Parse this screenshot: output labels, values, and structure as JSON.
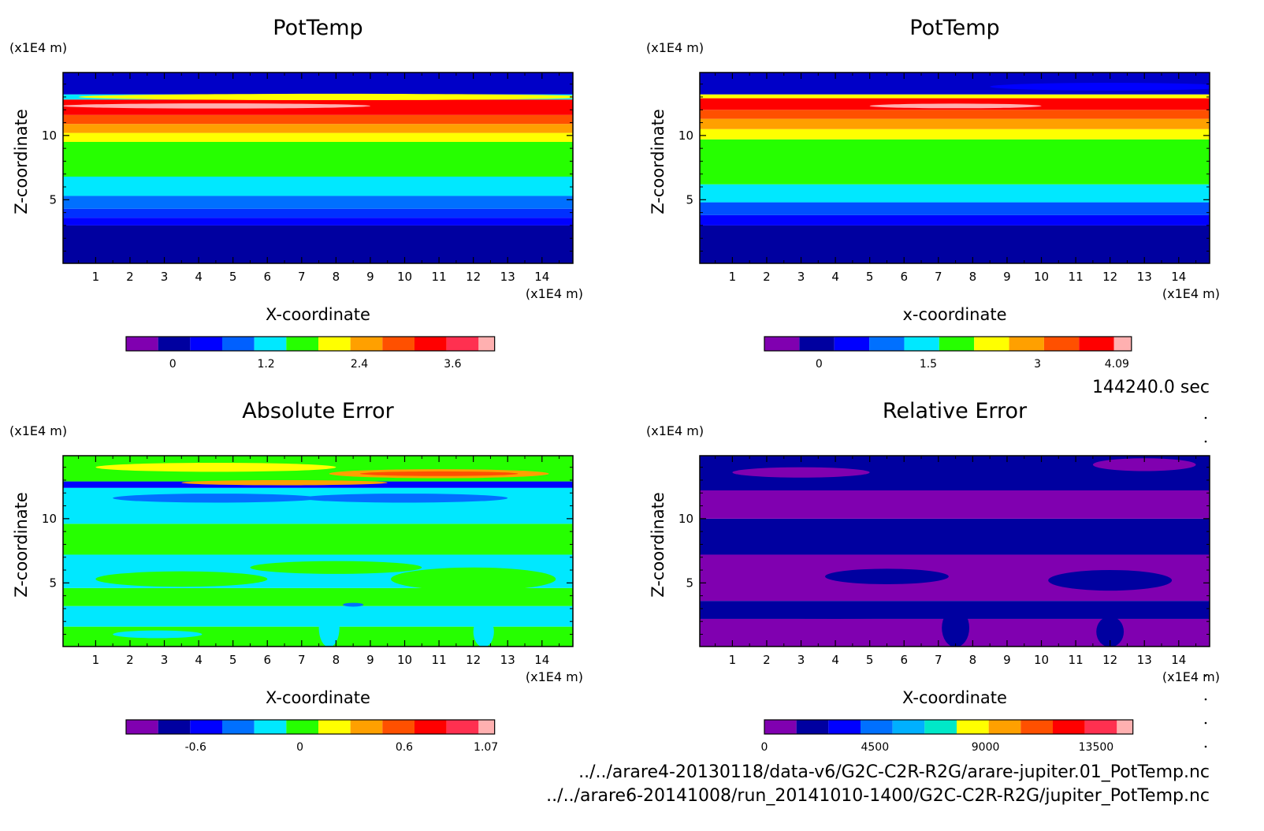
{
  "chart_data": [
    {
      "type": "heatmap",
      "title": "PotTemp",
      "xlabel": "X-coordinate",
      "ylabel": "Z-coordinate",
      "x_unit": "(x1E4 m)",
      "y_unit": "(x1E4 m)",
      "xlim": [
        0.05,
        14.9
      ],
      "ylim": [
        0.05,
        14.9
      ],
      "xticks": [
        "1",
        "2",
        "3",
        "4",
        "5",
        "6",
        "7",
        "8",
        "9",
        "10",
        "11",
        "12",
        "13",
        "14"
      ],
      "yticks": [
        "5",
        "10"
      ],
      "colorbar": {
        "colors": [
          "#8000b0",
          "#0000a0",
          "#0000ff",
          "#0060ff",
          "#00e8ff",
          "#26ff00",
          "#ffff00",
          "#ffa000",
          "#ff5000",
          "#ff0000",
          "#ff3050",
          "#ffb0b0"
        ],
        "ticks": [
          "0",
          "1.2",
          "2.4",
          "3.6"
        ],
        "tick_values": [
          0,
          1.2,
          2.4,
          3.6
        ],
        "range": [
          -0.6,
          4.14
        ]
      },
      "bands": [
        {
          "z": [
            0.05,
            3.0
          ],
          "color": "#0000a0"
        },
        {
          "z": [
            3.0,
            3.6
          ],
          "color": "#0000ff"
        },
        {
          "z": [
            3.6,
            4.3
          ],
          "color": "#0030ff"
        },
        {
          "z": [
            4.3,
            5.3
          ],
          "color": "#0070ff"
        },
        {
          "z": [
            5.3,
            6.8
          ],
          "color": "#00e8ff"
        },
        {
          "z": [
            6.8,
            9.5
          ],
          "color": "#26ff00"
        },
        {
          "z": [
            9.5,
            10.2
          ],
          "color": "#ffff00"
        },
        {
          "z": [
            10.2,
            10.9
          ],
          "color": "#ffa000"
        },
        {
          "z": [
            10.9,
            11.6
          ],
          "color": "#ff5000"
        },
        {
          "z": [
            11.6,
            12.8
          ],
          "color": "#ff0000"
        },
        {
          "z": [
            12.8,
            13.2
          ],
          "color": "#00e8ff"
        },
        {
          "z": [
            13.2,
            14.9
          ],
          "color": "#0000c8"
        }
      ]
    },
    {
      "type": "heatmap",
      "title": "PotTemp",
      "xlabel": "x-coordinate",
      "ylabel": "Z-coordinate",
      "x_unit": "(x1E4 m)",
      "y_unit": "(x1E4 m)",
      "xlim": [
        0.05,
        14.9
      ],
      "ylim": [
        0.05,
        14.9
      ],
      "xticks": [
        "1",
        "2",
        "3",
        "4",
        "5",
        "6",
        "7",
        "8",
        "9",
        "10",
        "11",
        "12",
        "13",
        "14"
      ],
      "yticks": [
        "5",
        "10"
      ],
      "colorbar": {
        "colors": [
          "#8000b0",
          "#0000a0",
          "#0000ff",
          "#0070ff",
          "#00e8ff",
          "#26ff00",
          "#ffff00",
          "#ffa000",
          "#ff5000",
          "#ff0000",
          "#ffb0b0"
        ],
        "ticks": [
          "0",
          "1.5",
          "3",
          "4.09"
        ],
        "tick_values": [
          0,
          1.5,
          3,
          4.09
        ],
        "range": [
          -0.75,
          4.29
        ]
      },
      "bands": [
        {
          "z": [
            0.05,
            3.0
          ],
          "color": "#0000a0"
        },
        {
          "z": [
            3.0,
            3.8
          ],
          "color": "#0000ff"
        },
        {
          "z": [
            3.8,
            4.8
          ],
          "color": "#0050ff"
        },
        {
          "z": [
            4.8,
            6.2
          ],
          "color": "#00e8ff"
        },
        {
          "z": [
            6.2,
            9.7
          ],
          "color": "#26ff00"
        },
        {
          "z": [
            9.7,
            10.5
          ],
          "color": "#ffff00"
        },
        {
          "z": [
            10.5,
            11.3
          ],
          "color": "#ffa000"
        },
        {
          "z": [
            11.3,
            12.0
          ],
          "color": "#ff5000"
        },
        {
          "z": [
            12.0,
            12.9
          ],
          "color": "#ff0000"
        },
        {
          "z": [
            12.9,
            13.2
          ],
          "color": "#ffff00"
        },
        {
          "z": [
            13.2,
            14.9
          ],
          "color": "#0000c8"
        }
      ]
    },
    {
      "type": "heatmap",
      "title": "Absolute Error",
      "xlabel": "X-coordinate",
      "ylabel": "Z-coordinate",
      "x_unit": "(x1E4 m)",
      "y_unit": "(x1E4 m)",
      "xlim": [
        0.05,
        14.9
      ],
      "ylim": [
        0.05,
        14.9
      ],
      "xticks": [
        "1",
        "2",
        "3",
        "4",
        "5",
        "6",
        "7",
        "8",
        "9",
        "10",
        "11",
        "12",
        "13",
        "14"
      ],
      "yticks": [
        "5",
        "10"
      ],
      "colorbar": {
        "colors": [
          "#8000b0",
          "#0000a0",
          "#0000ff",
          "#0070ff",
          "#00e8ff",
          "#26ff00",
          "#ffff00",
          "#ffa000",
          "#ff5000",
          "#ff0000",
          "#ff3050",
          "#ffb0b0"
        ],
        "ticks": [
          "-0.6",
          "0",
          "0.6",
          "1.07"
        ],
        "tick_values": [
          -0.6,
          0,
          0.6,
          1.07
        ],
        "range": [
          -1.0,
          1.12
        ]
      },
      "bands": [
        {
          "z": [
            0.05,
            1.6
          ],
          "color": "#26ff00"
        },
        {
          "z": [
            1.6,
            3.2
          ],
          "color": "#00e8ff"
        },
        {
          "z": [
            3.2,
            4.6
          ],
          "color": "#26ff00"
        },
        {
          "z": [
            4.6,
            7.2
          ],
          "color": "#00e8ff"
        },
        {
          "z": [
            7.2,
            9.6
          ],
          "color": "#26ff00"
        },
        {
          "z": [
            9.6,
            12.4
          ],
          "color": "#00e8ff"
        },
        {
          "z": [
            12.4,
            12.9
          ],
          "color": "#0000ff"
        },
        {
          "z": [
            12.9,
            14.9
          ],
          "color": "#26ff00"
        }
      ]
    },
    {
      "type": "heatmap",
      "title": "Relative Error",
      "xlabel": "X-coordinate",
      "ylabel": "Z-coordinate",
      "x_unit": "(x1E4 m)",
      "y_unit": "(x1E4 m)",
      "xlim": [
        0.05,
        14.9
      ],
      "ylim": [
        0.05,
        14.9
      ],
      "xticks": [
        "1",
        "2",
        "3",
        "4",
        "5",
        "6",
        "7",
        "8",
        "9",
        "10",
        "11",
        "12",
        "13",
        "14"
      ],
      "yticks": [
        "5",
        "10"
      ],
      "colorbar": {
        "colors": [
          "#8000b0",
          "#0000a0",
          "#0000ff",
          "#0070ff",
          "#00b0ff",
          "#00e8c8",
          "#ffff00",
          "#ffa000",
          "#ff5000",
          "#ff0000",
          "#ff3050",
          "#ffb0b0"
        ],
        "ticks": [
          "0",
          "4500",
          "9000",
          "13500"
        ],
        "tick_values": [
          0,
          4500,
          9000,
          13500
        ],
        "range": [
          0,
          15000
        ]
      },
      "bands": [
        {
          "z": [
            0.05,
            2.2
          ],
          "color": "#8000b0"
        },
        {
          "z": [
            2.2,
            3.6
          ],
          "color": "#0000a0"
        },
        {
          "z": [
            3.6,
            7.2
          ],
          "color": "#8000b0"
        },
        {
          "z": [
            7.2,
            10.0
          ],
          "color": "#0000a0"
        },
        {
          "z": [
            10.0,
            12.2
          ],
          "color": "#8000b0"
        },
        {
          "z": [
            12.2,
            14.9
          ],
          "color": "#0000a0"
        }
      ]
    }
  ],
  "annotations": {
    "time": "144240.0 sec",
    "file_1": "../../arare4-20130118/data-v6/G2C-C2R-R2G/arare-jupiter.01_PotTemp.nc",
    "file_2": "../../arare6-20141008/run_20141010-1400/G2C-C2R-R2G/jupiter_PotTemp.nc"
  }
}
